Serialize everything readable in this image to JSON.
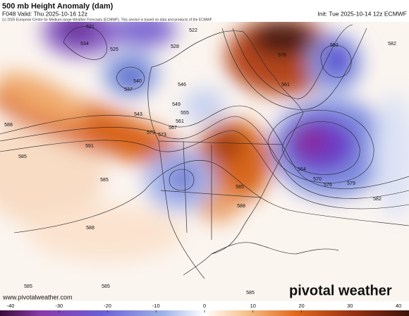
{
  "header": {
    "title": "500 mb Height Anomaly (dam)",
    "valid": "F048 Valid: Thu 2025-10-16 12z",
    "init": "Init: Tue 2025-10-14 12z ECMWF",
    "copyright": "(c) 2025 European Centre for Medium-range Weather Forecasts (ECMWF). This service is based on data and products of the ECMWF"
  },
  "map": {
    "contour_labels": [
      "534",
      "525",
      "528",
      "522",
      "531",
      "540",
      "537",
      "543",
      "546",
      "549",
      "555",
      "561",
      "567",
      "573",
      "579",
      "591",
      "588",
      "585",
      "585",
      "588",
      "582",
      "579",
      "576",
      "570",
      "564",
      "552",
      "576",
      "561",
      "585",
      "588",
      "585",
      "585",
      "585",
      "582"
    ]
  },
  "colorbar": {
    "range": [
      -40,
      40
    ],
    "ticks": [
      -40,
      -30,
      -20,
      -10,
      0,
      10,
      20,
      30,
      40
    ]
  },
  "footer": {
    "website": "www.pivotalweather.com",
    "logo": "pivotal weather"
  }
}
